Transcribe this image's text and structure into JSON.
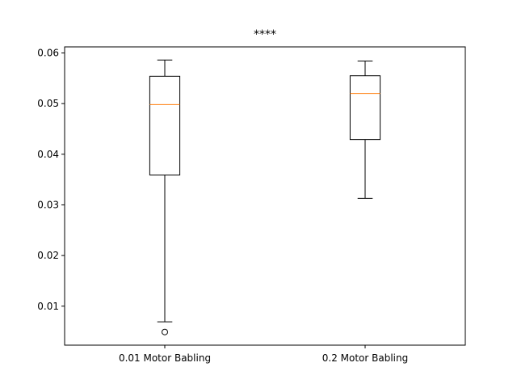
{
  "chart_data": {
    "type": "box",
    "title": "****",
    "xlabel": "",
    "ylabel": "",
    "categories": [
      "0.01 Motor Babling",
      "0.2 Motor Babling"
    ],
    "ylim": [
      0.0023,
      0.0612
    ],
    "yticks": [
      0.01,
      0.02,
      0.03,
      0.04,
      0.05,
      0.06
    ],
    "ytick_labels": [
      "0.01",
      "0.02",
      "0.03",
      "0.04",
      "0.05",
      "0.06"
    ],
    "grid": false,
    "boxes": [
      {
        "category": "0.01 Motor Babling",
        "whisker_low": 0.0069,
        "q1": 0.0359,
        "median": 0.0498,
        "q3": 0.0554,
        "whisker_high": 0.0586,
        "outliers": [
          0.0049
        ]
      },
      {
        "category": "0.2 Motor Babling",
        "whisker_low": 0.0313,
        "q1": 0.0429,
        "median": 0.052,
        "q3": 0.0555,
        "whisker_high": 0.0584,
        "outliers": []
      }
    ],
    "colors": {
      "box": "#000000",
      "median": "#ff7f0e",
      "background": "#ffffff"
    }
  }
}
